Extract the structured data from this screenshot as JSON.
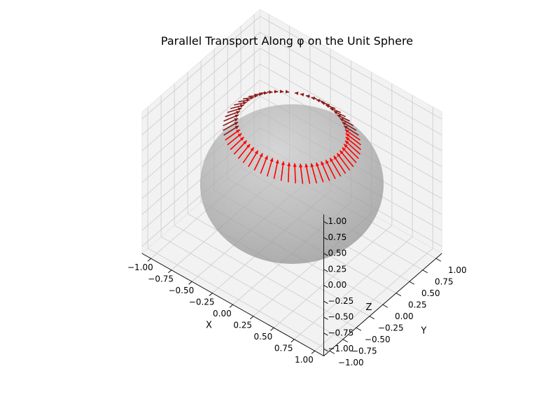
{
  "chart_data": {
    "type": "3d-quiver-surface",
    "title": "Parallel Transport Along φ on the Unit Sphere",
    "xlabel": "X",
    "ylabel": "Y",
    "zlabel": "Z",
    "xlim": [
      -1.0,
      1.0
    ],
    "ylim": [
      -1.0,
      1.0
    ],
    "zlim": [
      -1.0,
      1.0
    ],
    "x_ticks": [
      "−1.00",
      "−0.75",
      "−0.50",
      "−0.25",
      "0.00",
      "0.25",
      "0.50",
      "0.75",
      "1.00"
    ],
    "y_ticks": [
      "−1.00",
      "−0.75",
      "−0.50",
      "−0.25",
      "0.00",
      "0.25",
      "0.50",
      "0.75",
      "1.00"
    ],
    "z_ticks": [
      "−1.00",
      "−0.75",
      "−0.50",
      "−0.25",
      "0.00",
      "0.25",
      "0.50",
      "0.75",
      "1.00"
    ],
    "tick_values": [
      -1.0,
      -0.75,
      -0.5,
      -0.25,
      0.0,
      0.25,
      0.5,
      0.75,
      1.0
    ],
    "grid": true,
    "view": {
      "elevation_deg": 30,
      "azimuth_deg": -60
    },
    "surface": {
      "shape": "unit sphere",
      "radius": 1.0,
      "color": "#9a9a9a",
      "opacity": 0.7
    },
    "curve": {
      "name": "latitude circle",
      "theta_deg": 45,
      "radius": 0.7071,
      "z": 0.7071
    },
    "vectors": {
      "color_front": "#ff0000",
      "color_back": "#8b1a1a",
      "count": 60,
      "direction": "−e_θ",
      "length": 0.22
    },
    "colors": {
      "pane": "#f2f2f2",
      "grid": "#cfcfcf",
      "axis_line": "#000000"
    }
  }
}
